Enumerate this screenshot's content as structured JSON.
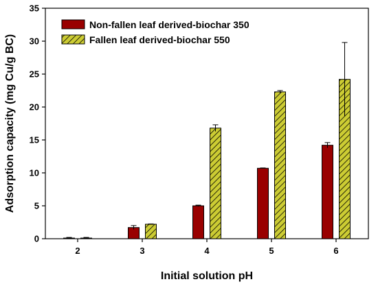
{
  "chart_data": {
    "type": "bar",
    "xlabel": "Initial solution pH",
    "ylabel": "Adsorption capacity (mg Cu/g BC)",
    "categories": [
      "2",
      "3",
      "4",
      "5",
      "6"
    ],
    "ylim": [
      0,
      35
    ],
    "yticks": [
      0,
      5,
      10,
      15,
      20,
      25,
      30,
      35
    ],
    "grid": false,
    "legend_position": "top-left",
    "series": [
      {
        "name": "Non-fallen leaf derived-biochar 350",
        "color": "#990000",
        "pattern": "solid",
        "values": [
          0.1,
          1.7,
          5.0,
          10.7,
          14.2
        ],
        "errors": [
          0.1,
          0.3,
          0.1,
          0.05,
          0.4
        ]
      },
      {
        "name": "Fallen leaf derived-biochar 550",
        "color": "#cccc33",
        "pattern": "hatched",
        "values": [
          0.1,
          2.2,
          16.8,
          22.3,
          24.2
        ],
        "errors": [
          0.1,
          0.05,
          0.5,
          0.2,
          5.6
        ]
      }
    ]
  }
}
